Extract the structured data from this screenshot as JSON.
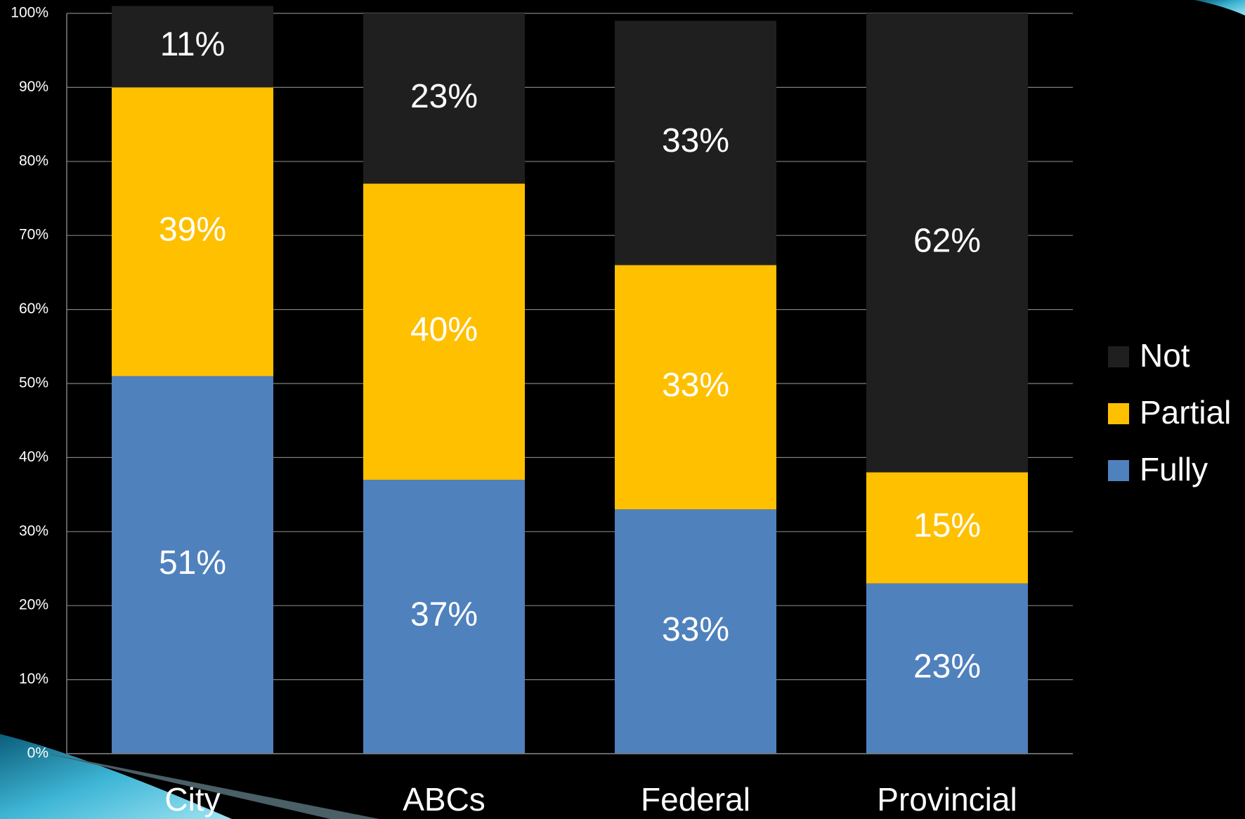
{
  "chart_data": {
    "type": "stacked_bar_percent",
    "categories": [
      "City",
      "ABCs",
      "Federal",
      "Provincial"
    ],
    "series": [
      {
        "name": "Fully",
        "color": "#4f81bd",
        "values": [
          51,
          37,
          33,
          23
        ],
        "value_labels": [
          "51%",
          "37%",
          "33%",
          "23%"
        ]
      },
      {
        "name": "Partial",
        "color": "#ffc000",
        "values": [
          39,
          40,
          33,
          15
        ],
        "value_labels": [
          "39%",
          "40%",
          "33%",
          "15%"
        ]
      },
      {
        "name": "Not",
        "color": "#1f1f1f",
        "values": [
          11,
          23,
          33,
          62
        ],
        "value_labels": [
          "11%",
          "23%",
          "33%",
          "62%"
        ]
      }
    ],
    "ylim": [
      0,
      100
    ],
    "yticks": [
      {
        "value": 0,
        "label": "0%"
      },
      {
        "value": 10,
        "label": "10%"
      },
      {
        "value": 20,
        "label": "20%"
      },
      {
        "value": 30,
        "label": "30%"
      },
      {
        "value": 40,
        "label": "40%"
      },
      {
        "value": 50,
        "label": "50%"
      },
      {
        "value": 60,
        "label": "60%"
      },
      {
        "value": 70,
        "label": "70%"
      },
      {
        "value": 80,
        "label": "80%"
      },
      {
        "value": 90,
        "label": "90%"
      },
      {
        "value": 100,
        "label": "100%"
      }
    ],
    "grid": true,
    "legend": "right"
  }
}
